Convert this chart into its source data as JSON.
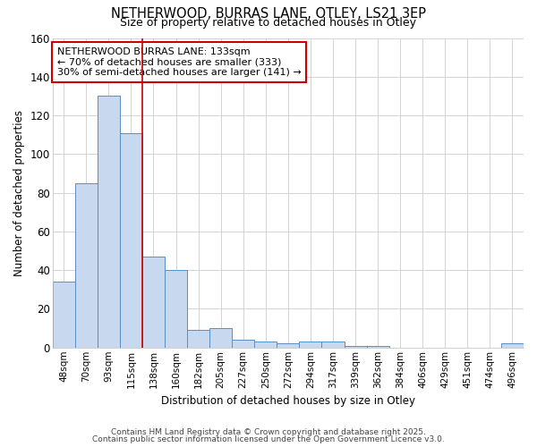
{
  "title1": "NETHERWOOD, BURRAS LANE, OTLEY, LS21 3EP",
  "title2": "Size of property relative to detached houses in Otley",
  "xlabel": "Distribution of detached houses by size in Otley",
  "ylabel": "Number of detached properties",
  "categories": [
    "48sqm",
    "70sqm",
    "93sqm",
    "115sqm",
    "138sqm",
    "160sqm",
    "182sqm",
    "205sqm",
    "227sqm",
    "250sqm",
    "272sqm",
    "294sqm",
    "317sqm",
    "339sqm",
    "362sqm",
    "384sqm",
    "406sqm",
    "429sqm",
    "451sqm",
    "474sqm",
    "496sqm"
  ],
  "values": [
    34,
    85,
    130,
    111,
    47,
    40,
    9,
    10,
    4,
    3,
    2,
    3,
    3,
    1,
    1,
    0,
    0,
    0,
    0,
    0,
    2
  ],
  "bar_color": "#c8d8ee",
  "bar_edge_color": "#5b8ec4",
  "vline_x": 3.5,
  "vline_color": "#cc0000",
  "annotation_text": "NETHERWOOD BURRAS LANE: 133sqm\n← 70% of detached houses are smaller (333)\n30% of semi-detached houses are larger (141) →",
  "annotation_box_color": "#cc0000",
  "ylim": [
    0,
    160
  ],
  "yticks": [
    0,
    20,
    40,
    60,
    80,
    100,
    120,
    140,
    160
  ],
  "background_color": "#ffffff",
  "plot_bg_color": "#ffffff",
  "grid_color": "#cccccc",
  "footer1": "Contains HM Land Registry data © Crown copyright and database right 2025.",
  "footer2": "Contains public sector information licensed under the Open Government Licence v3.0."
}
